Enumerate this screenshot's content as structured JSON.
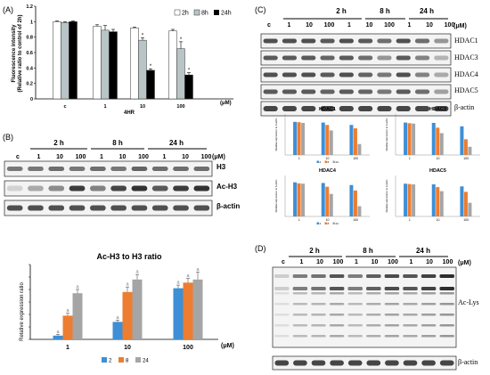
{
  "panel_a": {
    "letter": "(A)",
    "ylabel_line1": "Fluorescence intensity",
    "ylabel_line2": "(Relative ratio to control of 2h)",
    "xlabel": "4HR",
    "unit": "(μM)",
    "colors": {
      "2h": "#ffffff",
      "8h": "#b8c4c6",
      "24h": "#000000"
    }
  },
  "panel_b": {
    "letter": "(B)",
    "time_labels": [
      "2 h",
      "8 h",
      "24 h"
    ],
    "lane_labels": [
      "c",
      "1",
      "10",
      "100",
      "1",
      "10",
      "100",
      "1",
      "10",
      "100"
    ],
    "unit": "(μM)",
    "blot_labels": [
      "H3",
      "Ac-H3",
      "β-actin"
    ],
    "chart_title": "Ac-H3 to H3 ratio",
    "ylabel": "Relative expression ratio",
    "xunit": "(μM)",
    "colors": {
      "2": "#3e8fd6",
      "8": "#ed7d31",
      "24": "#a5a5a5"
    }
  },
  "panel_c": {
    "letter": "(C)",
    "time_labels": [
      "2 h",
      "8 h",
      "24 h"
    ],
    "lane_labels": [
      "c",
      "1",
      "10",
      "100",
      "1",
      "10",
      "100",
      "1",
      "10",
      "100"
    ],
    "unit": "(μM)",
    "blot_labels": [
      "HDAC1",
      "HDAC3",
      "HDAC4",
      "HDAC5",
      "β-actin"
    ],
    "small_ylabel": "Relative expression to β-actin"
  },
  "panel_d": {
    "letter": "(D)",
    "time_labels": [
      "2 h",
      "8 h",
      "24 h"
    ],
    "lane_labels": [
      "c",
      "1",
      "10",
      "100",
      "1",
      "10",
      "100",
      "1",
      "10",
      "100"
    ],
    "unit": "(μM)",
    "blot_labels": [
      "Ac-Lys",
      "β-actin"
    ]
  },
  "chart_data": [
    {
      "id": "A",
      "type": "bar",
      "categories": [
        "c",
        "1",
        "10",
        "100"
      ],
      "xlabel": "4HR",
      "ylabel": "Fluorescence intensity (Relative ratio to control of 2h)",
      "ylim": [
        0,
        1.2
      ],
      "yticks": [
        "0",
        "0.2",
        "0.4",
        "0.6",
        "0.8",
        "1",
        "1.2"
      ],
      "legend": "top-right",
      "series": [
        {
          "name": "2h",
          "values": [
            1.0,
            0.94,
            0.92,
            0.88
          ]
        },
        {
          "name": "8h",
          "values": [
            0.99,
            0.89,
            0.76,
            0.65
          ]
        },
        {
          "name": "24h",
          "values": [
            1.0,
            0.87,
            0.37,
            0.31
          ]
        }
      ],
      "errors": [
        [
          0.01,
          0.02,
          0.01,
          0.02
        ],
        [
          0.01,
          0.06,
          0.03,
          0.09
        ],
        [
          0.01,
          0.03,
          0.02,
          0.03
        ]
      ],
      "annotations": [
        {
          "category": "10",
          "series": "8h",
          "text": "*"
        },
        {
          "category": "10",
          "series": "24h",
          "text": "*"
        },
        {
          "category": "100",
          "series": "8h",
          "text": "*"
        },
        {
          "category": "100",
          "series": "24h",
          "text": "*"
        }
      ]
    },
    {
      "id": "B",
      "type": "bar",
      "title": "Ac-H3 to H3 ratio",
      "categories": [
        "1",
        "10",
        "100"
      ],
      "ylabel": "Relative expression ratio",
      "ylim": [
        0,
        1.2
      ],
      "legend": "bottom",
      "series": [
        {
          "name": "2",
          "values": [
            0.06,
            0.28,
            0.82
          ]
        },
        {
          "name": "8",
          "values": [
            0.38,
            0.76,
            0.91
          ]
        },
        {
          "name": "24",
          "values": [
            0.74,
            0.96,
            0.96
          ]
        }
      ],
      "errors": [
        [
          0.02,
          0.03,
          0.05
        ],
        [
          0.04,
          0.08,
          0.07
        ],
        [
          0.06,
          0.08,
          0.12
        ]
      ],
      "annotations": [
        {
          "category": "1",
          "series": "2",
          "text": "a"
        },
        {
          "category": "1",
          "series": "8",
          "text": "a"
        },
        {
          "category": "1",
          "series": "24",
          "text": "a"
        },
        {
          "category": "10",
          "series": "2",
          "text": "a"
        },
        {
          "category": "10",
          "series": "8",
          "text": "a"
        },
        {
          "category": "10",
          "series": "24",
          "text": "a"
        },
        {
          "category": "100",
          "series": "2",
          "text": "a"
        },
        {
          "category": "100",
          "series": "8",
          "text": "a"
        },
        {
          "category": "100",
          "series": "24",
          "text": "a"
        }
      ]
    },
    {
      "id": "C-HDAC1",
      "type": "bar",
      "title": "HDAC1",
      "categories": [
        "1",
        "10",
        "100"
      ],
      "ylim": [
        0,
        1.2
      ],
      "legend": "bottom",
      "series": [
        {
          "name": "2",
          "values": [
            0.97,
            0.95,
            0.88
          ]
        },
        {
          "name": "8",
          "values": [
            0.96,
            0.88,
            0.78
          ]
        },
        {
          "name": "24",
          "values": [
            0.94,
            0.72,
            0.32
          ]
        }
      ]
    },
    {
      "id": "C-HDAC3",
      "type": "bar",
      "title": "HDAC3",
      "categories": [
        "1",
        "10",
        "100"
      ],
      "ylim": [
        0,
        1.2
      ],
      "series": [
        {
          "name": "2",
          "values": [
            0.95,
            0.94,
            0.84
          ]
        },
        {
          "name": "8",
          "values": [
            0.93,
            0.8,
            0.46
          ]
        },
        {
          "name": "24",
          "values": [
            0.92,
            0.64,
            0.24
          ]
        }
      ]
    },
    {
      "id": "C-HDAC4",
      "type": "bar",
      "title": "HDAC4",
      "categories": [
        "1",
        "10",
        "100"
      ],
      "ylim": [
        0,
        1.2
      ],
      "legend": "bottom",
      "series": [
        {
          "name": "2",
          "values": [
            1.0,
            0.98,
            0.92
          ]
        },
        {
          "name": "8",
          "values": [
            0.97,
            0.87,
            0.76
          ]
        },
        {
          "name": "24",
          "values": [
            0.96,
            0.66,
            0.3
          ]
        }
      ]
    },
    {
      "id": "C-HDAC5",
      "type": "bar",
      "title": "HDAC5",
      "categories": [
        "1",
        "10",
        "100"
      ],
      "ylim": [
        0,
        1.2
      ],
      "series": [
        {
          "name": "2",
          "values": [
            0.96,
            0.94,
            0.88
          ]
        },
        {
          "name": "8",
          "values": [
            0.95,
            0.86,
            0.72
          ]
        },
        {
          "name": "24",
          "values": [
            0.94,
            0.74,
            0.4
          ]
        }
      ]
    }
  ]
}
